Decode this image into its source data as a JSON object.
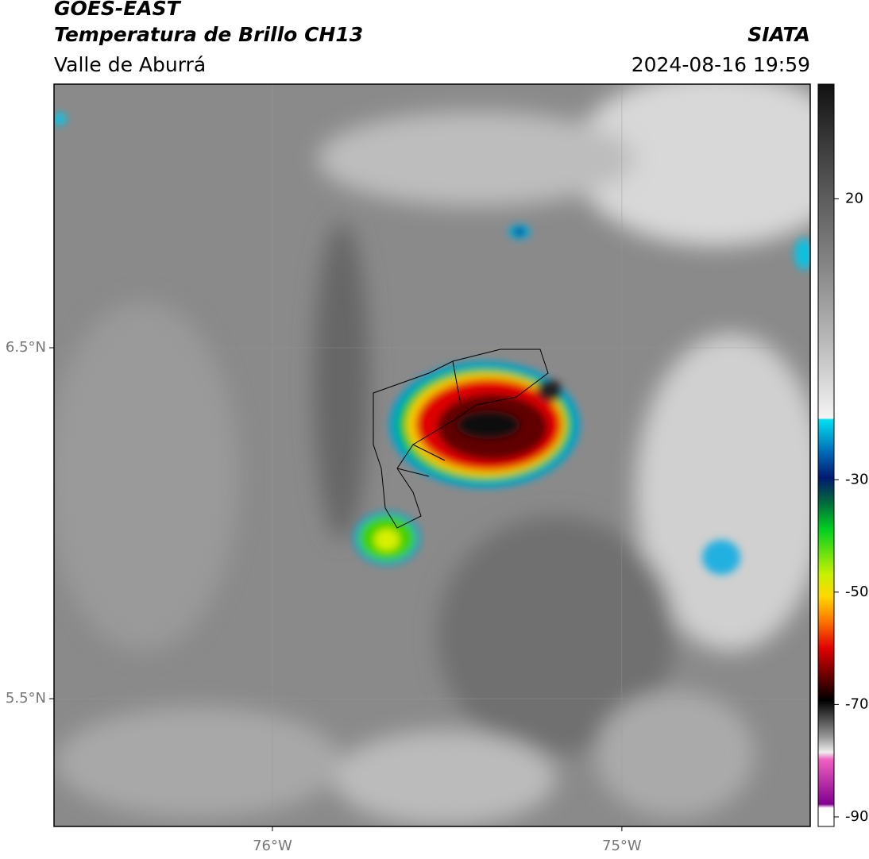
{
  "header": {
    "title": "GOES-EAST",
    "subtitle": "Temperatura de Brillo CH13",
    "region": "Valle de Aburrá",
    "source": "SIATA",
    "timestamp": "2024-08-16 19:59"
  },
  "map": {
    "latlim": [
      7.251,
      5.136
    ],
    "lonlim": [
      -76.625,
      -74.461
    ],
    "lat_ticks": [
      {
        "value": 6.5,
        "label": "6.5°N"
      },
      {
        "value": 5.5,
        "label": "5.5°N"
      }
    ],
    "lon_ticks": [
      {
        "value": -76,
        "label": "76°W"
      },
      {
        "value": -75,
        "label": "75°W"
      }
    ],
    "grid": true
  },
  "colorbar": {
    "lim": [
      40.4,
      -91.7
    ],
    "ticks": [
      20,
      -30,
      -50,
      -70,
      -90
    ]
  }
}
